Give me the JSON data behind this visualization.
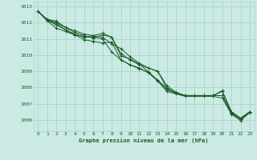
{
  "xlabel": "Graphe pression niveau de la mer (hPa)",
  "background_color": "#cceae4",
  "grid_color": "#aad4cc",
  "line_color": "#1a5c28",
  "ylim": [
    1005.3,
    1013.3
  ],
  "xlim": [
    -0.5,
    23.5
  ],
  "yticks": [
    1006,
    1007,
    1008,
    1009,
    1010,
    1011,
    1012,
    1013
  ],
  "xticks": [
    0,
    1,
    2,
    3,
    4,
    5,
    6,
    7,
    8,
    9,
    10,
    11,
    12,
    13,
    14,
    15,
    16,
    17,
    18,
    19,
    20,
    21,
    22,
    23
  ],
  "series": [
    [
      1012.7,
      1012.2,
      1012.1,
      1011.7,
      1011.5,
      1011.3,
      1011.2,
      1011.1,
      1010.7,
      1010.4,
      1009.9,
      1009.5,
      1009.2,
      1009.0,
      1008.1,
      1007.7,
      1007.5,
      1007.5,
      1007.5,
      1007.5,
      1007.8,
      1006.5,
      1006.1,
      1006.5
    ],
    [
      1012.7,
      1012.2,
      1012.0,
      1011.7,
      1011.4,
      1011.2,
      1011.05,
      1011.25,
      1011.1,
      1010.1,
      1009.7,
      1009.4,
      1009.2,
      1009.0,
      1007.95,
      1007.65,
      1007.5,
      1007.5,
      1007.5,
      1007.5,
      1007.5,
      1006.4,
      1006.05,
      1006.5
    ],
    [
      1012.7,
      1012.15,
      1011.95,
      1011.55,
      1011.25,
      1010.95,
      1010.85,
      1010.75,
      1010.8,
      1009.7,
      1009.4,
      1009.2,
      1008.9,
      1008.4,
      1007.75,
      1007.6,
      1007.45,
      1007.45,
      1007.45,
      1007.45,
      1007.35,
      1006.35,
      1005.95,
      1006.45
    ],
    [
      1012.7,
      1012.15,
      1011.85,
      1011.55,
      1011.3,
      1011.1,
      1011.2,
      1011.35,
      1011.1,
      1009.95,
      1009.75,
      1009.45,
      1008.95,
      1008.45,
      1007.95,
      1007.65,
      1007.5,
      1007.5,
      1007.5,
      1007.5,
      1007.5,
      1006.45,
      1006.05,
      1006.5
    ],
    [
      1012.7,
      1012.1,
      1011.65,
      1011.45,
      1011.25,
      1011.15,
      1011.1,
      1011.0,
      1010.2,
      1009.7,
      1009.4,
      1009.15,
      1008.95,
      1008.4,
      1007.85,
      1007.65,
      1007.5,
      1007.5,
      1007.5,
      1007.5,
      1007.75,
      1006.5,
      1006.1,
      1006.5
    ]
  ]
}
